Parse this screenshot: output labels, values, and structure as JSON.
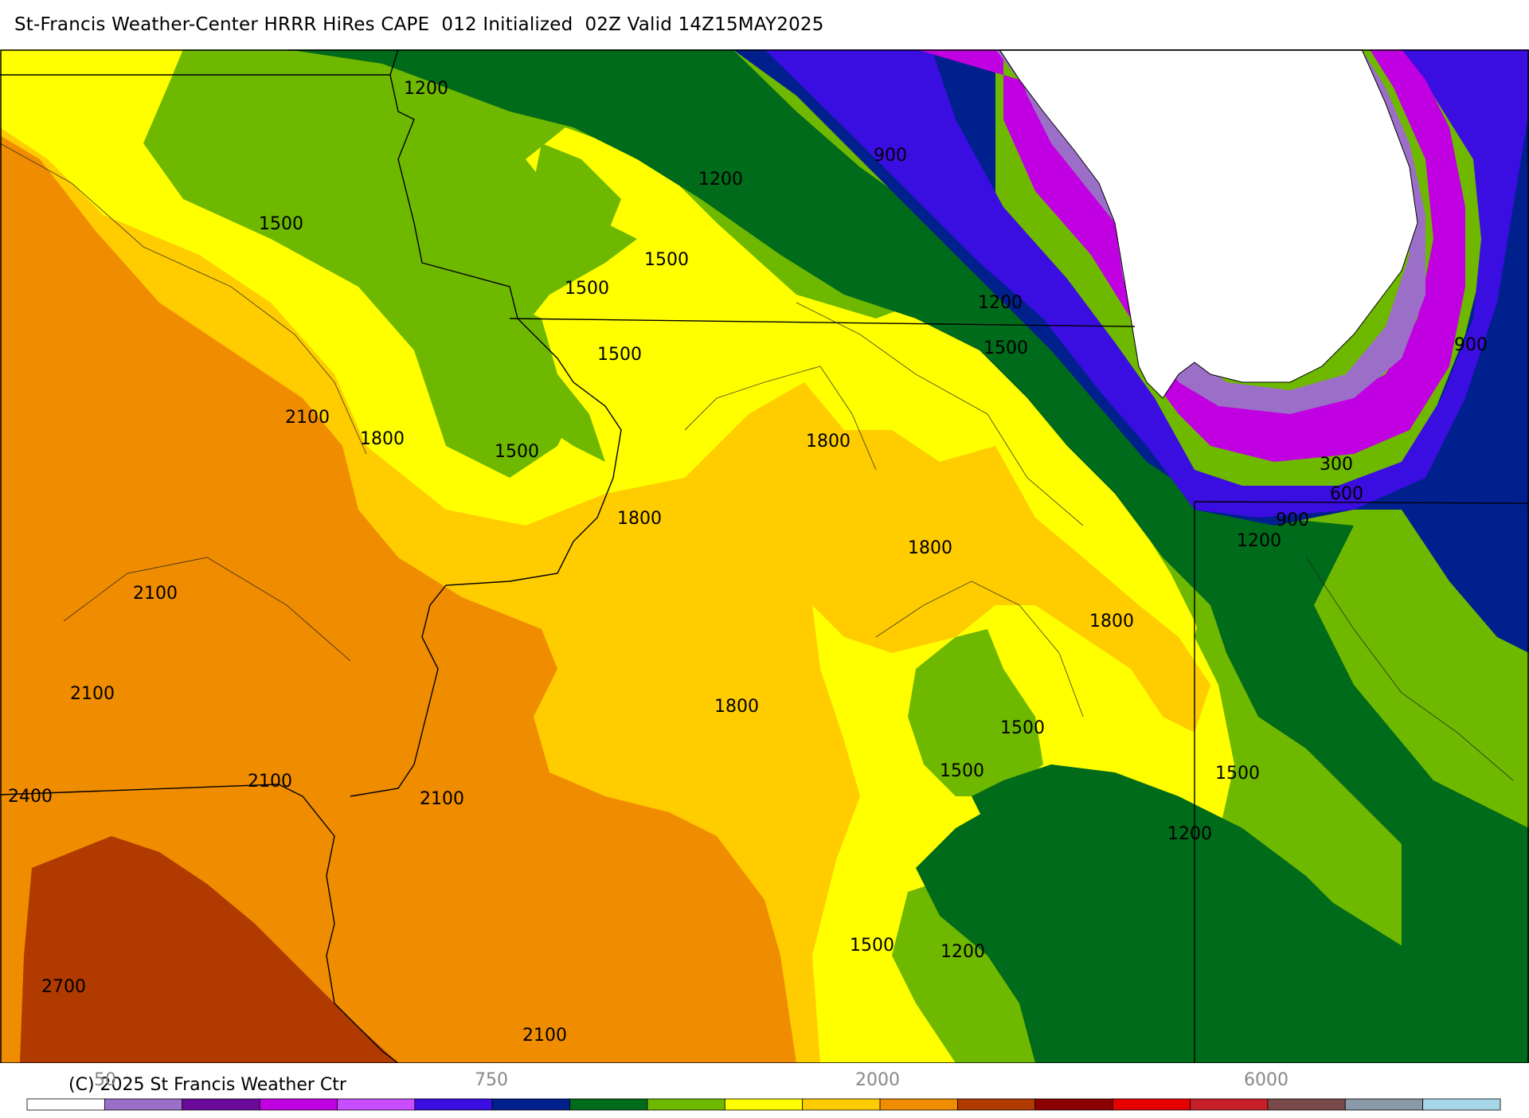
{
  "header": {
    "title": "St-Francis Weather-Center HRRR HiRes CAPE  012 Initialized  02Z Valid 14Z15MAY2025"
  },
  "map": {
    "field": "CAPE",
    "contour_labels": [
      "300",
      "600",
      "900",
      "1200",
      "1500",
      "1800",
      "2100",
      "2400",
      "2700"
    ],
    "lake_fill": "#ffffff"
  },
  "colorbar": {
    "tick_labels": [
      "50",
      "750",
      "2000",
      "6000"
    ],
    "colors": [
      "#ffffff",
      "#9b6fc7",
      "#6a0a9a",
      "#c000e0",
      "#c84dff",
      "#3a0ee0",
      "#00208e",
      "#006b1a",
      "#6eb800",
      "#ffff00",
      "#ffcc00",
      "#ef8c00",
      "#b03a00",
      "#8b0000",
      "#e60000",
      "#c8202a",
      "#7a4a4a",
      "#8a9aa8",
      "#a8d8e8"
    ]
  },
  "footer": {
    "copyright": "(C) 2025 St Francis Weather Ctr"
  }
}
